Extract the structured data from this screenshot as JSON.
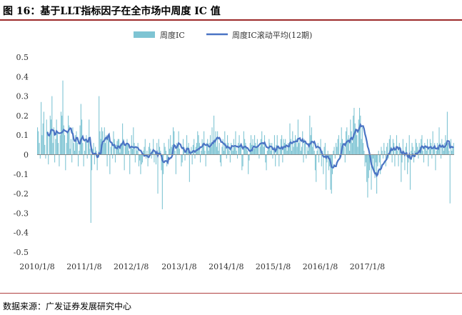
{
  "figure": {
    "title": "图 16：基于LLT指标因子在全市场中周度 IC 值",
    "source": "数据来源：广发证券发展研究中心"
  },
  "colors": {
    "bar": "#7ec4d3",
    "line": "#4a74c4",
    "rule": "#9c2a2a"
  },
  "chart_data": {
    "type": "bar",
    "title": "",
    "xlabel": "",
    "ylabel": "",
    "ylim": [
      -0.5,
      0.5
    ],
    "yticks": [
      "0.5",
      "0.4",
      "0.3",
      "0.2",
      "0.1",
      "0",
      "-0.1",
      "-0.2",
      "-0.3",
      "-0.4",
      "-0.5"
    ],
    "xticks": [
      "2010/1/8",
      "2011/1/8",
      "2012/1/8",
      "2013/1/8",
      "2014/1/8",
      "2015/1/8",
      "2016/1/8",
      "2017/1/8"
    ],
    "grid": false,
    "legend_position": "top-center",
    "series": [
      {
        "name": "周度IC",
        "type": "bar",
        "color": "#7ec4d3",
        "x_start": "2010/1/8",
        "frequency": "weekly",
        "values": [
          0.14,
          0.12,
          0.06,
          -0.02,
          0.27,
          0.1,
          0.16,
          0.22,
          0.05,
          -0.02,
          0.18,
          0.12,
          -0.05,
          0.1,
          0.2,
          0.18,
          0.3,
          0.06,
          0.14,
          -0.04,
          0.08,
          0.18,
          0.12,
          0.06,
          -0.06,
          0.1,
          0.22,
          0.2,
          0.38,
          0.15,
          0.1,
          -0.08,
          0.06,
          0.12,
          0.2,
          0.15,
          0.03,
          0.08,
          -0.04,
          0.14,
          0.06,
          0.02,
          0.1,
          0.12,
          0.06,
          -0.06,
          0.02,
          0.15,
          0.26,
          0.18,
          0.06,
          -0.06,
          0.02,
          0.08,
          0.1,
          -0.02,
          0.06,
          0.18,
          0.03,
          -0.35,
          -0.08,
          0.03,
          0.06,
          -0.05,
          0.04,
          0.02,
          -0.08,
          0.0,
          0.3,
          0.12,
          0.08,
          0.14,
          0.12,
          0.06,
          0.14,
          0.06,
          0.1,
          -0.06,
          0.1,
          0.08,
          -0.1,
          0.04,
          0.06,
          -0.02,
          0.12,
          0.08,
          -0.04,
          0.05,
          0.07,
          0.08,
          0.08,
          0.01,
          0.06,
          0.06,
          0.16,
          0.08,
          -0.08,
          0.04,
          0.05,
          0.08,
          0.05,
          0.02,
          -0.1,
          0.04,
          0.1,
          0.03,
          0.14,
          0.06,
          -0.04,
          0.04,
          0.02,
          0.06,
          -0.06,
          -0.03,
          -0.1,
          -0.05,
          -0.04,
          0.02,
          0.04,
          0.08,
          -0.02,
          0.02,
          -0.06,
          0.04,
          0.06,
          0.03,
          -0.02,
          0.02,
          0.08,
          -0.04,
          0.02,
          -0.05,
          0.06,
          -0.2,
          0.08,
          0.04,
          0.02,
          -0.08,
          -0.28,
          -0.1,
          0.06,
          0.04,
          0.02,
          -0.06,
          -0.03,
          0.08,
          0.03,
          0.1,
          0.04,
          0.05,
          0.14,
          0.12,
          0.02,
          -0.1,
          0.06,
          0.05,
          0.12,
          0.03,
          0.0,
          -0.06,
          -0.04,
          0.08,
          0.04,
          -0.03,
          0.02,
          0.1,
          0.04,
          0.06,
          -0.14,
          0.02,
          0.04,
          -0.05,
          0.05,
          0.08,
          -0.02,
          0.04,
          0.06,
          0.12,
          0.1,
          0.06,
          -0.04,
          0.02,
          0.08,
          0.06,
          0.12,
          0.02,
          -0.06,
          0.06,
          0.08,
          0.02,
          0.06,
          0.1,
          0.04,
          0.14,
          0.06,
          0.2,
          0.08,
          0.12,
          0.04,
          0.12,
          0.02,
          0.06,
          -0.04,
          -0.06,
          0.04,
          0.08,
          0.02,
          0.12,
          0.06,
          -0.02,
          0.1,
          0.06,
          0.02,
          -0.04,
          0.06,
          0.04,
          0.02,
          0.08,
          0.04,
          0.12,
          0.02,
          -0.02,
          0.06,
          0.1,
          0.04,
          0.06,
          -0.08,
          -0.06,
          0.12,
          0.08,
          0.06,
          0.04,
          0.02,
          -0.1,
          -0.03,
          0.06,
          0.1,
          0.05,
          0.08,
          0.03,
          0.1,
          0.06,
          0.04,
          0.08,
          0.05,
          -0.02,
          0.04,
          0.08,
          0.12,
          0.06,
          0.04,
          0.1,
          -0.04,
          -0.08,
          0.02,
          0.04,
          0.08,
          0.06,
          0.02,
          0.06,
          -0.02,
          0.04,
          0.1,
          -0.06,
          0.05,
          0.1,
          0.04,
          -0.06,
          0.04,
          0.08,
          0.1,
          -0.04,
          0.08,
          0.06,
          0.08,
          0.04,
          0.02,
          0.06,
          0.04,
          0.16,
          0.08,
          0.02,
          0.12,
          0.04,
          0.06,
          0.1,
          0.08,
          0.04,
          0.18,
          0.06,
          0.08,
          0.02,
          0.04,
          0.12,
          -0.04,
          0.08,
          0.06,
          -0.02,
          0.04,
          0.02,
          0.06,
          0.2,
          0.1,
          0.14,
          0.04,
          0.06,
          0.02,
          -0.08,
          -0.14,
          0.02,
          0.06,
          -0.04,
          0.04,
          0.08,
          -0.06,
          0.02,
          -0.1,
          0.04,
          0.06,
          -0.18,
          -0.04,
          0.02,
          -0.08,
          -0.06,
          -0.18,
          -0.2,
          -0.1,
          0.02,
          0.04,
          -0.02,
          0.06,
          0.04,
          0.08,
          0.1,
          -0.02,
          0.06,
          0.14,
          0.08,
          0.06,
          0.04,
          -0.04,
          0.12,
          0.14,
          0.08,
          0.1,
          0.02,
          0.18,
          0.12,
          0.06,
          0.2,
          0.24,
          0.16,
          0.12,
          0.1,
          0.04,
          0.18,
          0.24,
          0.2,
          0.08,
          0.14,
          0.06,
          0.02,
          -0.06,
          -0.04,
          -0.14,
          -0.22,
          -0.12,
          -0.08,
          -0.04,
          -0.18,
          -0.06,
          -0.02,
          -0.08,
          -0.12,
          -0.04,
          -0.2,
          -0.06,
          0.02,
          -0.04,
          -0.1,
          0.04,
          0.02,
          -0.02,
          0.06,
          0.02,
          -0.06,
          0.04,
          0.06,
          -0.02,
          0.08,
          0.1,
          0.04,
          -0.04,
          0.08,
          0.06,
          -0.06,
          0.04,
          0.1,
          0.02,
          -0.06,
          0.06,
          0.04,
          -0.14,
          -0.04,
          0.08,
          0.02,
          -0.08,
          0.04,
          0.06,
          -0.1,
          -0.04,
          0.1,
          -0.18,
          0.02,
          0.06,
          0.04,
          -0.04,
          0.02,
          0.08,
          0.06,
          0.04,
          -0.02,
          0.06,
          0.04,
          0.08,
          0.1,
          0.02,
          -0.04,
          0.06,
          0.04,
          0.02,
          0.08,
          -0.06,
          0.04,
          0.08,
          0.06,
          -0.02,
          0.12,
          0.04,
          0.06,
          -0.08,
          0.02,
          0.06,
          0.04,
          0.14,
          0.06,
          -0.02,
          0.08,
          0.04,
          0.02,
          0.06,
          0.1,
          0.04,
          0.22,
          0.06,
          0.02,
          -0.25,
          0.08,
          0.02,
          0.04,
          0.06
        ]
      },
      {
        "name": "周度IC滚动平均(12期)",
        "type": "line",
        "color": "#4a74c4",
        "window": 12
      }
    ]
  }
}
